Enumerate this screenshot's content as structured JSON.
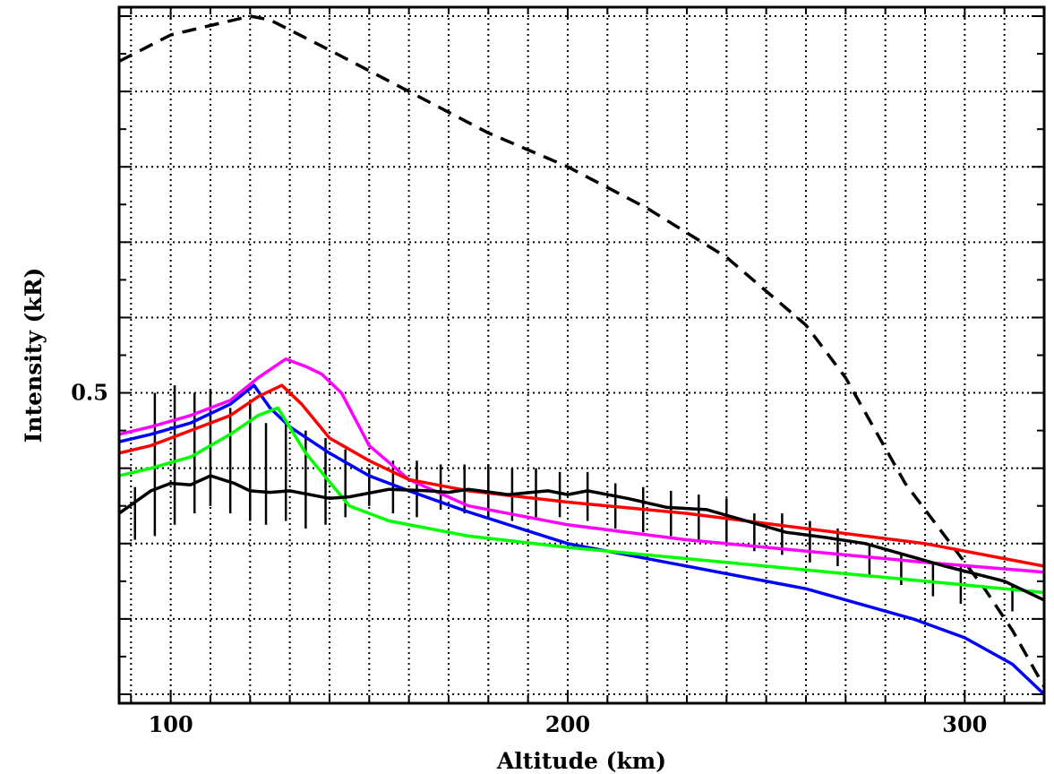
{
  "chart_data": {
    "type": "line",
    "title": "",
    "xlabel": "Altitude (km)",
    "ylabel": "Intensity (kR)",
    "xlim": [
      87,
      320
    ],
    "ylim": [
      0.1,
      1.0
    ],
    "x_ticks": [
      100,
      200,
      300
    ],
    "x_tick_labels": [
      "100",
      "200",
      "300"
    ],
    "y_ticks": [
      0.5
    ],
    "y_tick_labels": [
      "0.5"
    ],
    "y_gridlines": [
      0.1,
      0.2,
      0.3,
      0.4,
      0.5,
      0.6,
      0.7,
      0.8,
      0.9,
      1.0
    ],
    "grid": true,
    "grid_style": "dotted",
    "legend": "none",
    "series": [
      {
        "style": "dashed",
        "color": "#000000",
        "x": [
          87,
          100,
          120,
          125,
          140,
          160,
          180,
          200,
          220,
          240,
          260,
          270,
          285,
          295,
          305,
          312,
          320
        ],
        "y": [
          0.94,
          0.975,
          1.0,
          0.995,
          0.955,
          0.9,
          0.845,
          0.8,
          0.745,
          0.68,
          0.59,
          0.52,
          0.38,
          0.31,
          0.24,
          0.185,
          0.11
        ]
      },
      {
        "style": "solid",
        "color": "#ff00ff",
        "x": [
          87,
          95,
          105,
          115,
          122,
          129,
          134,
          138,
          143,
          150,
          160,
          175,
          200,
          230,
          260,
          290,
          320
        ],
        "y": [
          0.445,
          0.455,
          0.47,
          0.49,
          0.52,
          0.545,
          0.535,
          0.525,
          0.5,
          0.43,
          0.385,
          0.35,
          0.325,
          0.305,
          0.29,
          0.275,
          0.262
        ]
      },
      {
        "style": "solid",
        "color": "#0000ff",
        "x": [
          87,
          95,
          105,
          115,
          121,
          125,
          130,
          140,
          150,
          160,
          175,
          200,
          230,
          260,
          287,
          300,
          312,
          320
        ],
        "y": [
          0.435,
          0.445,
          0.46,
          0.485,
          0.51,
          0.48,
          0.455,
          0.42,
          0.39,
          0.37,
          0.342,
          0.3,
          0.27,
          0.24,
          0.2,
          0.175,
          0.14,
          0.1
        ]
      },
      {
        "style": "solid",
        "color": "#ff0000",
        "x": [
          87,
          95,
          105,
          115,
          122,
          128,
          133,
          140,
          150,
          160,
          175,
          200,
          230,
          260,
          290,
          320
        ],
        "y": [
          0.42,
          0.43,
          0.45,
          0.47,
          0.495,
          0.51,
          0.485,
          0.44,
          0.41,
          0.385,
          0.37,
          0.355,
          0.34,
          0.32,
          0.3,
          0.27
        ]
      },
      {
        "style": "solid",
        "color": "#00ff00",
        "x": [
          87,
          95,
          105,
          115,
          122,
          127,
          134,
          145,
          155,
          175,
          200,
          230,
          260,
          290,
          320
        ],
        "y": [
          0.39,
          0.4,
          0.415,
          0.445,
          0.47,
          0.48,
          0.42,
          0.35,
          0.33,
          0.31,
          0.295,
          0.28,
          0.265,
          0.25,
          0.235
        ]
      },
      {
        "style": "solid",
        "color": "#000000",
        "x": [
          87,
          95,
          100,
          105,
          110,
          116,
          120,
          125,
          130,
          140,
          145,
          155,
          165,
          170,
          175,
          185,
          195,
          200,
          205,
          215,
          225,
          235,
          245,
          255,
          265,
          275,
          285,
          295,
          310,
          320
        ],
        "y": [
          0.34,
          0.37,
          0.38,
          0.378,
          0.39,
          0.38,
          0.37,
          0.368,
          0.37,
          0.36,
          0.362,
          0.372,
          0.37,
          0.368,
          0.372,
          0.365,
          0.37,
          0.365,
          0.37,
          0.36,
          0.348,
          0.345,
          0.33,
          0.315,
          0.308,
          0.3,
          0.285,
          0.27,
          0.25,
          0.225
        ]
      }
    ],
    "error_bars": {
      "x": [
        87,
        91,
        96,
        101,
        106,
        110,
        115,
        120,
        124,
        129,
        134,
        139,
        144,
        150,
        156,
        162,
        168,
        174,
        180,
        186,
        192,
        198,
        205,
        212,
        219,
        226,
        233,
        240,
        247,
        254,
        261,
        268,
        276,
        284,
        292,
        299,
        312
      ],
      "low": [
        0.3,
        0.305,
        0.31,
        0.325,
        0.34,
        0.35,
        0.34,
        0.33,
        0.325,
        0.33,
        0.32,
        0.325,
        0.335,
        0.35,
        0.34,
        0.335,
        0.345,
        0.34,
        0.335,
        0.33,
        0.335,
        0.335,
        0.33,
        0.32,
        0.315,
        0.31,
        0.305,
        0.3,
        0.29,
        0.285,
        0.275,
        0.27,
        0.255,
        0.245,
        0.23,
        0.22,
        0.21
      ],
      "high": [
        0.365,
        0.375,
        0.5,
        0.51,
        0.5,
        0.505,
        0.48,
        0.49,
        0.46,
        0.46,
        0.45,
        0.44,
        0.425,
        0.4,
        0.41,
        0.41,
        0.405,
        0.405,
        0.405,
        0.4,
        0.4,
        0.395,
        0.395,
        0.38,
        0.375,
        0.37,
        0.365,
        0.36,
        0.34,
        0.34,
        0.33,
        0.32,
        0.3,
        0.285,
        0.275,
        0.27,
        0.245
      ]
    }
  }
}
